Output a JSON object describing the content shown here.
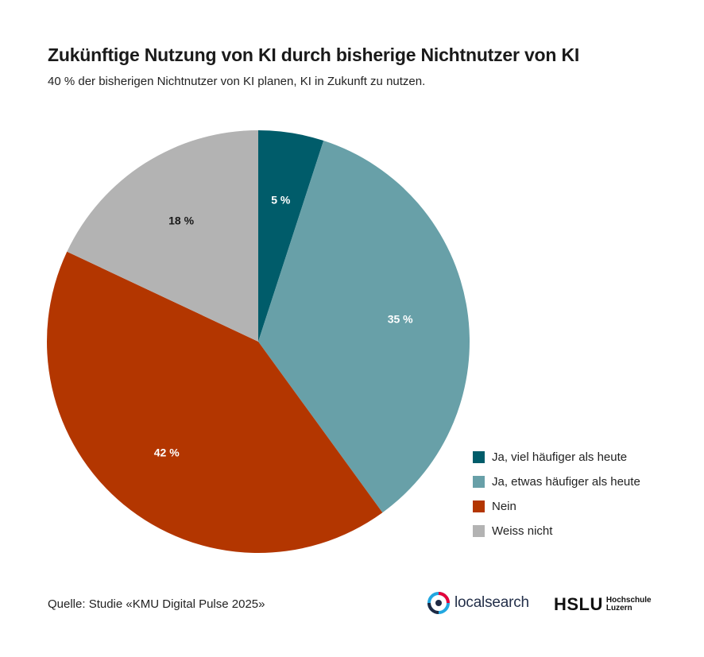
{
  "title": "Zukünftige Nutzung von KI durch bisherige Nichtnutzer von KI",
  "subtitle": "40 % der bisherigen Nichtnutzer von KI planen, KI in Zukunft zu nutzen.",
  "source": "Quelle: Studie «KMU Digital Pulse 2025»",
  "logos": {
    "localsearch": "localsearch",
    "hslu_main": "HSLU",
    "hslu_sub_line1": "Hochschule",
    "hslu_sub_line2": "Luzern"
  },
  "chart_data": {
    "type": "pie",
    "title": "Zukünftige Nutzung von KI durch bisherige Nichtnutzer von KI",
    "legend_position": "bottom-right",
    "slices": [
      {
        "name": "Ja, viel häufiger als heute",
        "value": 5,
        "label": "5 %",
        "color": "#005c6a",
        "label_color": "#ffffff"
      },
      {
        "name": "Ja, etwas häufiger als heute",
        "value": 35,
        "label": "35 %",
        "color": "#68a0a8",
        "label_color": "#ffffff"
      },
      {
        "name": "Nein",
        "value": 42,
        "label": "42 %",
        "color": "#b33600",
        "label_color": "#ffffff"
      },
      {
        "name": "Weiss nicht",
        "value": 18,
        "label": "18 %",
        "color": "#b3b3b3",
        "label_color": "#1a1a1a"
      }
    ]
  }
}
